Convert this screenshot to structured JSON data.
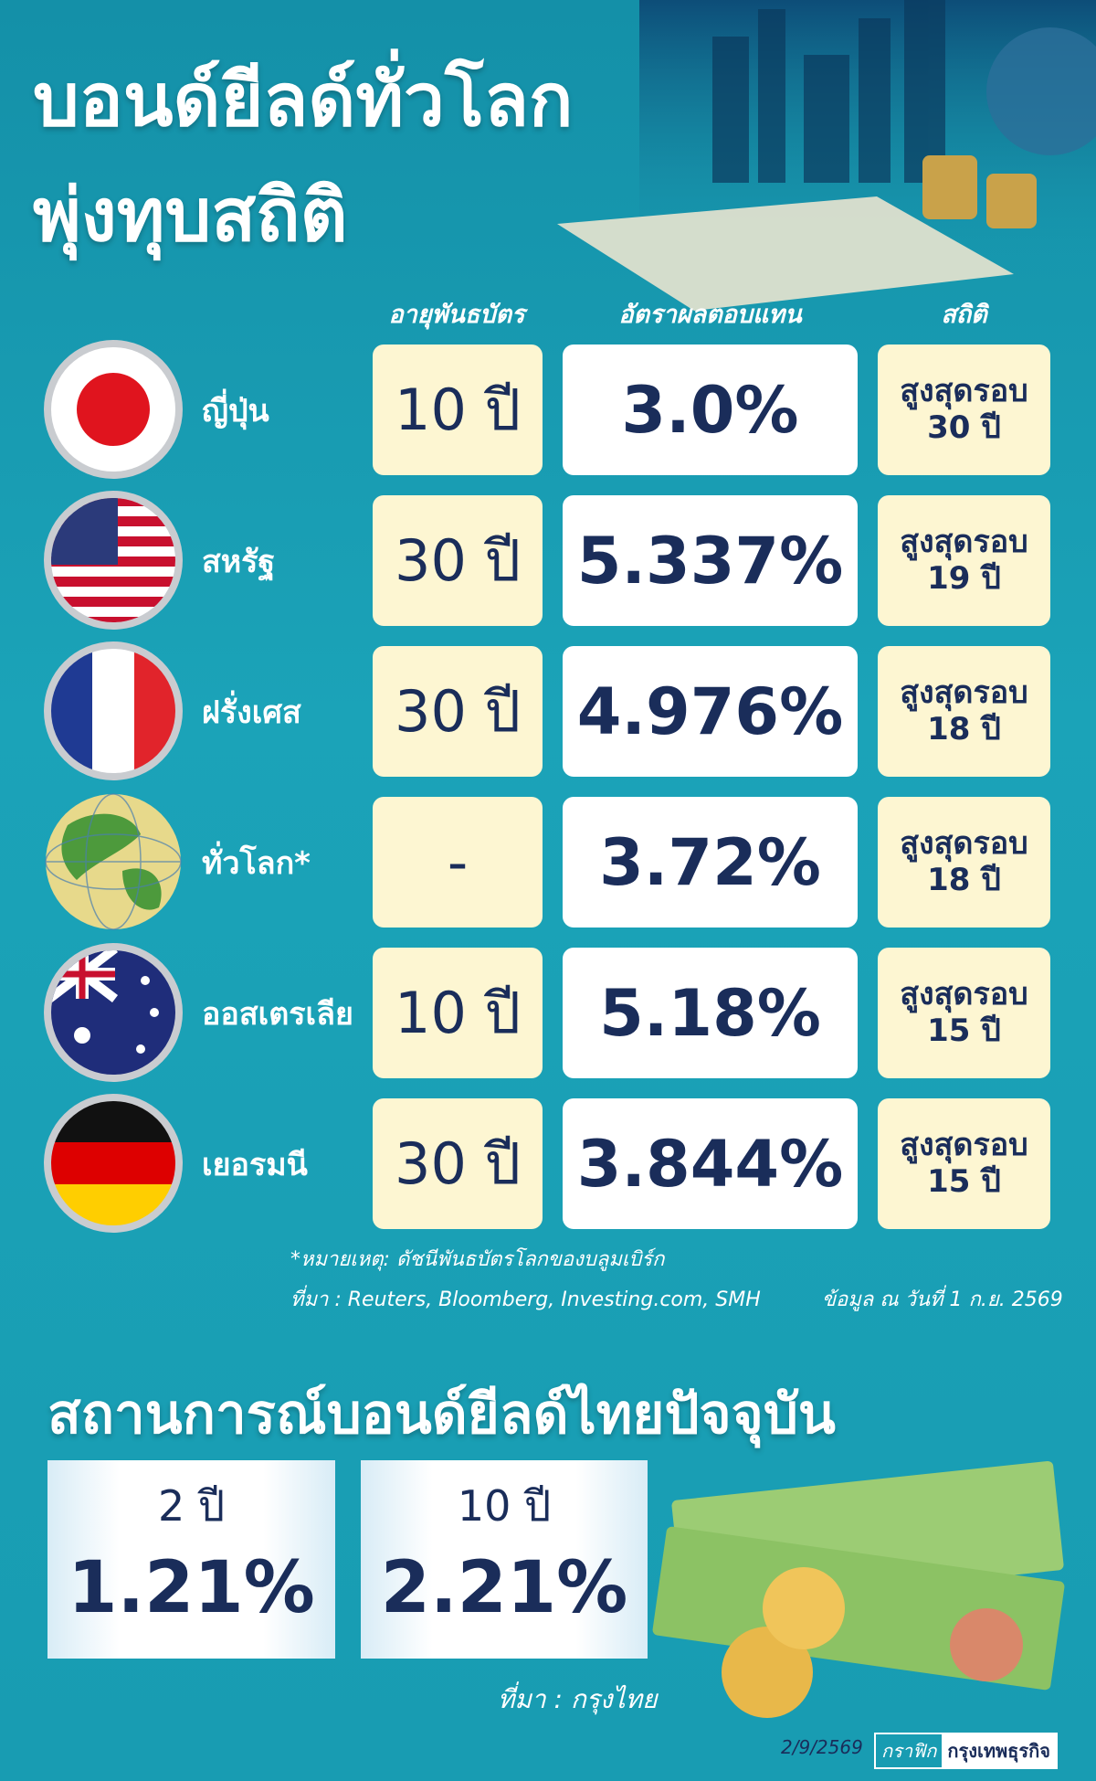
{
  "header": {
    "title_line1": "บอนด์ยีลด์ทั่วโลก",
    "title_line2": "พุ่งทุบสถิติ"
  },
  "table": {
    "columns": [
      "อายุพันธบัตร",
      "อัตราผลตอบแทน",
      "สถิติ"
    ],
    "rows": [
      {
        "country": "ญี่ปุ่น",
        "term": "10 ปี",
        "yield": "3.0%",
        "record_line1": "สูงสุดรอบ",
        "record_line2": "30 ปี"
      },
      {
        "country": "สหรัฐ",
        "term": "30 ปี",
        "yield": "5.337%",
        "record_line1": "สูงสุดรอบ",
        "record_line2": "19 ปี"
      },
      {
        "country": "ฝรั่งเศส",
        "term": "30 ปี",
        "yield": "4.976%",
        "record_line1": "สูงสุดรอบ",
        "record_line2": "18 ปี"
      },
      {
        "country": "ทั่วโลก*",
        "term": "-",
        "yield": "3.72%",
        "record_line1": "สูงสุดรอบ",
        "record_line2": "18 ปี"
      },
      {
        "country": "ออสเตรเลีย",
        "term": "10 ปี",
        "yield": "5.18%",
        "record_line1": "สูงสุดรอบ",
        "record_line2": "15 ปี"
      },
      {
        "country": "เยอรมนี",
        "term": "30 ปี",
        "yield": "3.844%",
        "record_line1": "สูงสุดรอบ",
        "record_line2": "15 ปี"
      }
    ]
  },
  "notes": {
    "remark": "*หมายเหตุ: ดัชนีพันธบัตรโลกของบลูมเบิร์ก",
    "source": "ที่มา : Reuters, Bloomberg, Investing.com, SMH",
    "as_of": "ข้อมูล ณ วันที่ 1 ก.ย. 2569"
  },
  "thai_section": {
    "title": "สถานการณ์บอนด์ยีลด์ไทยปัจจุบัน",
    "cards": [
      {
        "term": "2 ปี",
        "yield": "1.21%"
      },
      {
        "term": "10 ปี",
        "yield": "2.21%"
      }
    ],
    "source": "ที่มา : กรุงไทย"
  },
  "footer": {
    "date": "2/9/2569",
    "credit_label": "กราฟิก",
    "credit_name": "กรุงเทพธุรกิจ"
  }
}
